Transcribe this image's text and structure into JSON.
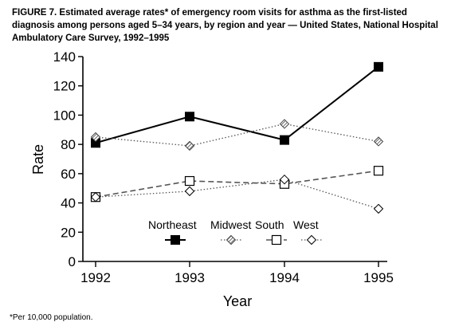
{
  "caption": "FIGURE 7. Estimated average rates* of emergency room visits for asthma as the first-listed diagnosis among persons aged 5–34 years, by region and year — United States, National Hospital Ambulatory Care Survey, 1992–1995",
  "footnote": "*Per 10,000 population.",
  "chart_data": {
    "type": "line",
    "title": "",
    "xlabel": "Year",
    "ylabel": "Rate",
    "x": [
      "1992",
      "1993",
      "1994",
      "1995"
    ],
    "ylim": [
      0,
      140
    ],
    "yticks": [
      "0",
      "20",
      "40",
      "60",
      "80",
      "100",
      "120",
      "140"
    ],
    "grid": false,
    "legend_position": "center-bottom",
    "series": [
      {
        "name": "Northeast",
        "values": [
          81,
          99,
          83,
          133
        ],
        "line": "solid",
        "marker": "filled-square"
      },
      {
        "name": "Midwest",
        "values": [
          85,
          79,
          94,
          82
        ],
        "line": "dotted",
        "marker": "hatched-diamond"
      },
      {
        "name": "South",
        "values": [
          44,
          55,
          53,
          62
        ],
        "line": "dashed",
        "marker": "open-square"
      },
      {
        "name": "West",
        "values": [
          44,
          48,
          56,
          36
        ],
        "line": "dotted",
        "marker": "open-diamond"
      }
    ]
  }
}
